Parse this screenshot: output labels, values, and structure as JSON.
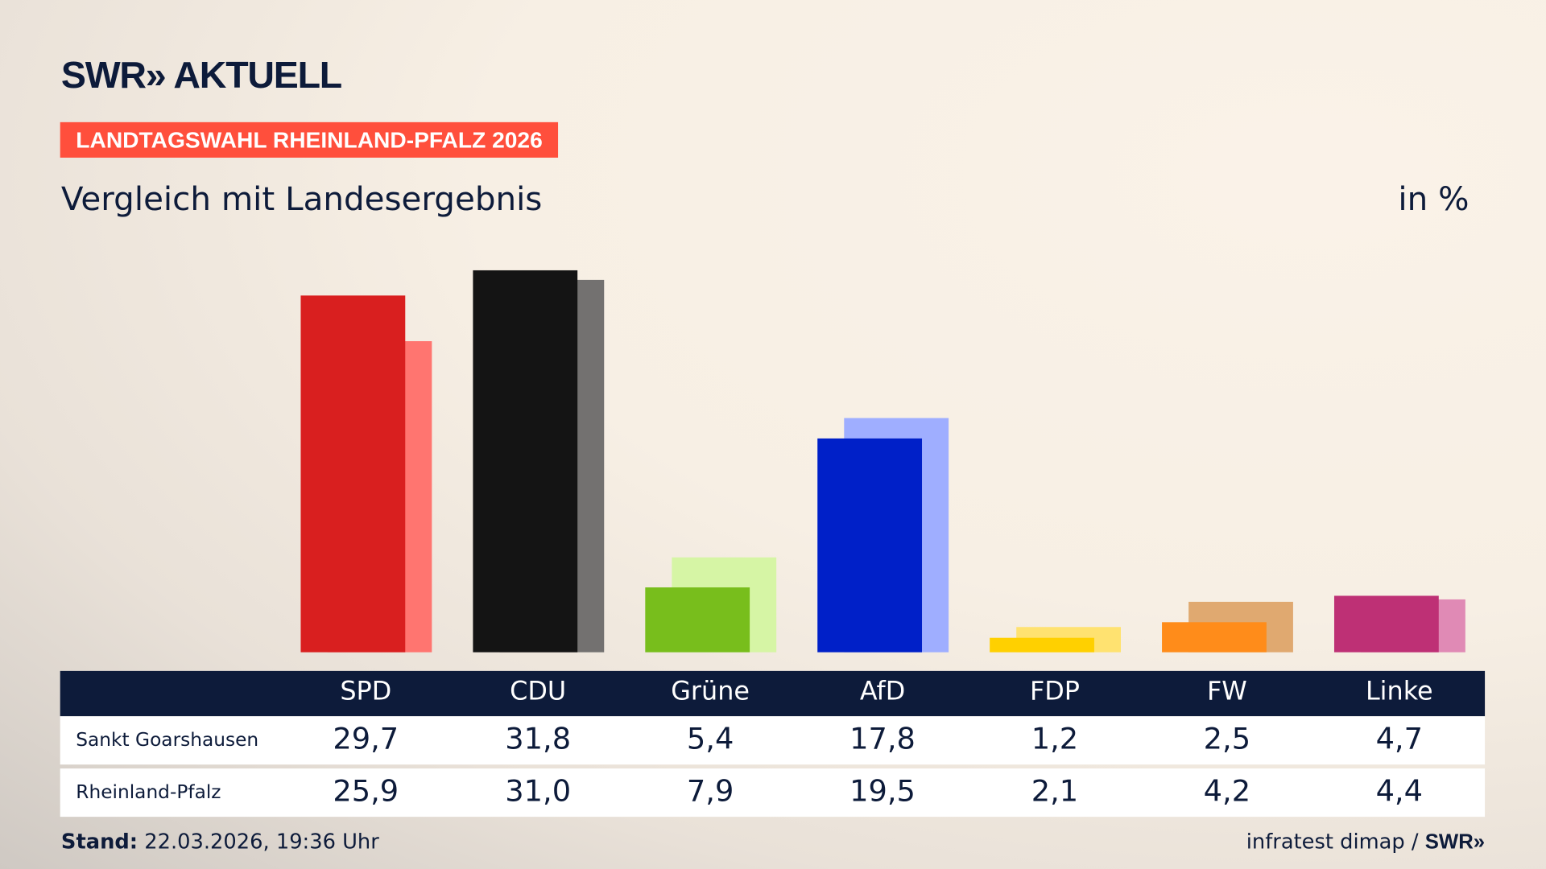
{
  "header": {
    "logo": "SWR» AKTUELL",
    "badge": "LANDTAGSWAHL RHEINLAND-PFALZ 2026",
    "subtitle": "Vergleich mit Landesergebnis",
    "unit": "in %"
  },
  "chart_data": {
    "type": "bar",
    "title": "Vergleich mit Landesergebnis",
    "ylabel": "in %",
    "categories": [
      "SPD",
      "CDU",
      "Grüne",
      "AfD",
      "FDP",
      "FW",
      "Linke"
    ],
    "series": [
      {
        "name": "Sankt Goarshausen",
        "values": [
          29.7,
          31.8,
          5.4,
          17.8,
          1.2,
          2.5,
          4.7
        ],
        "display": [
          "29,7",
          "31,8",
          "5,4",
          "17,8",
          "1,2",
          "2,5",
          "4,7"
        ],
        "colors": [
          "#d91f1f",
          "#141414",
          "#78be1c",
          "#0020c8",
          "#ffd000",
          "#ff8c1a",
          "#be3075"
        ]
      },
      {
        "name": "Rheinland-Pfalz",
        "values": [
          25.9,
          31.0,
          7.9,
          19.5,
          2.1,
          4.2,
          4.4
        ],
        "display": [
          "25,9",
          "31,0",
          "7,9",
          "19,5",
          "2,1",
          "4,2",
          "4,4"
        ],
        "colors": [
          "#ff7570",
          "#737170",
          "#d6f5a5",
          "#9faeff",
          "#ffe270",
          "#e0a970",
          "#e08ab5"
        ]
      }
    ],
    "grid": false
  },
  "footer": {
    "stand_label": "Stand:",
    "stand_value": " 22.03.2026, 19:36 Uhr",
    "source": "infratest dimap / ",
    "source_logo": "SWR»"
  }
}
